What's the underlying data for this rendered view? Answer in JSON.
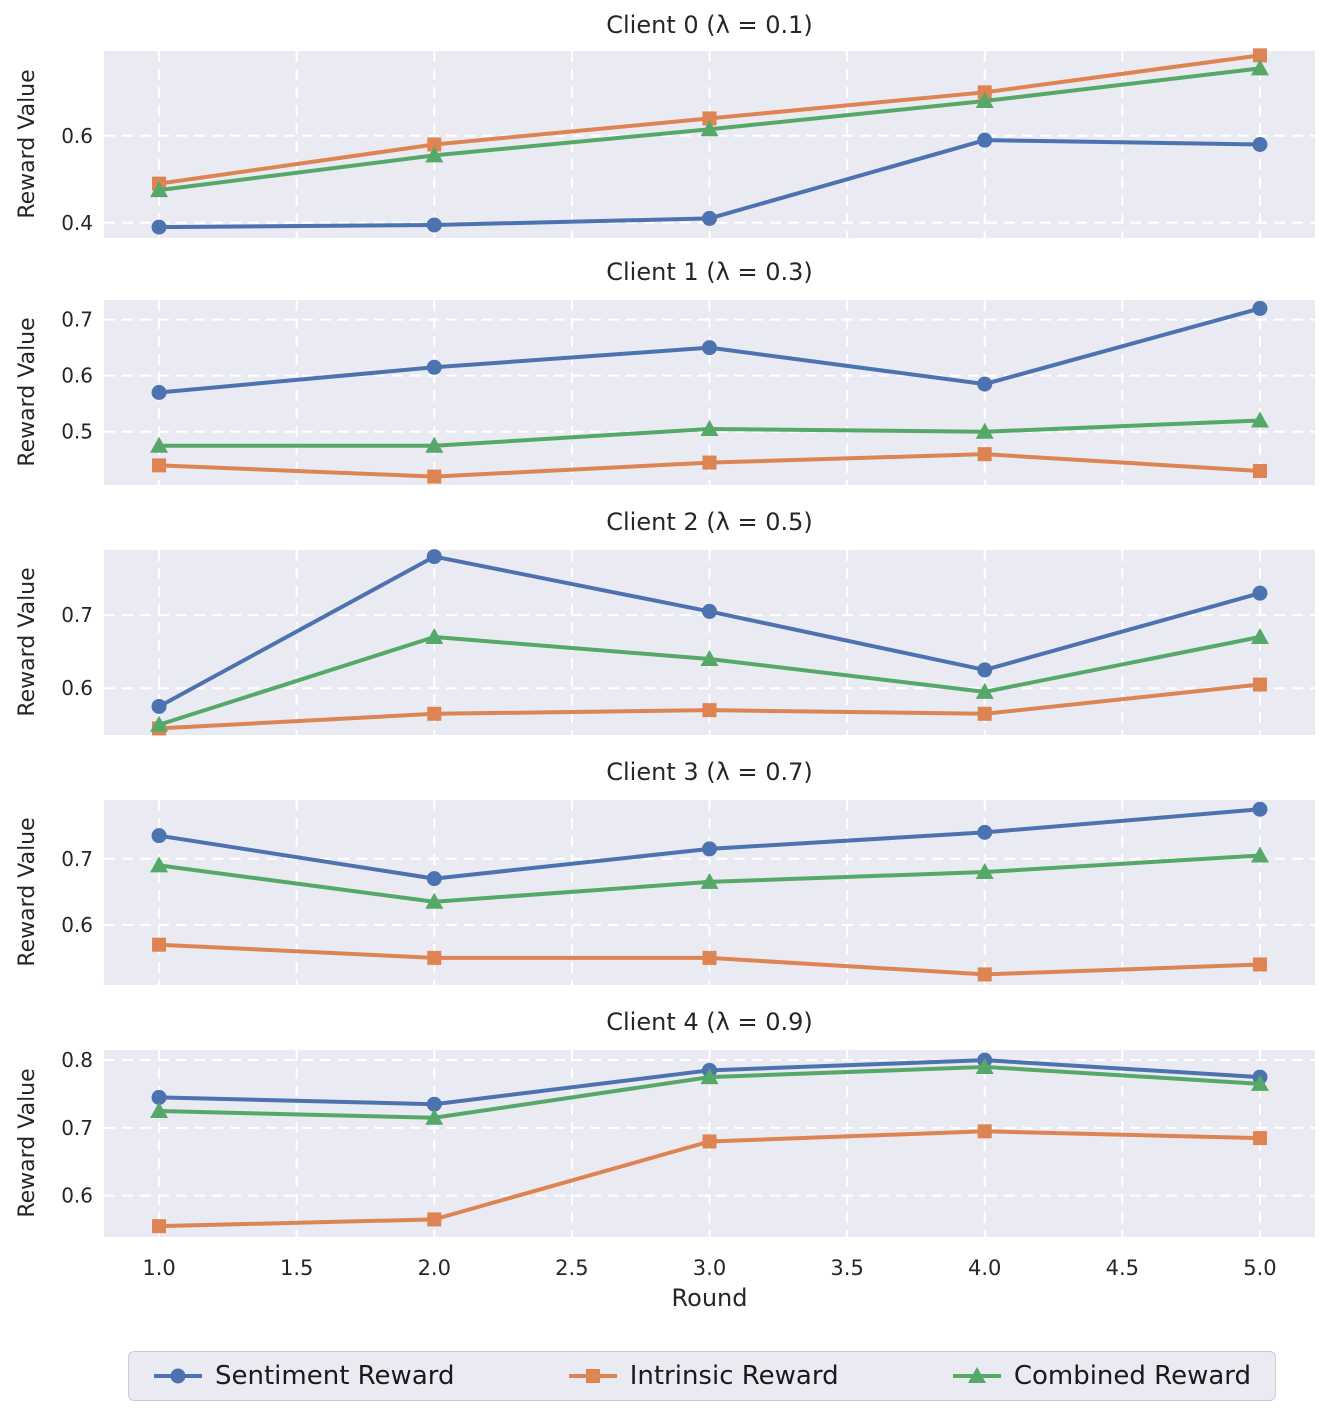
{
  "figure": {
    "background": "#ffffff",
    "plot_background": "#eaeaf2",
    "grid_color": "#ffffff",
    "text_color": "#262626"
  },
  "axes": {
    "xlabel": "Round",
    "ylabel": "Reward Value",
    "xlim": [
      0.8,
      5.2
    ],
    "x_grid": [
      1.0,
      1.5,
      2.0,
      2.5,
      3.0,
      3.5,
      4.0,
      4.5,
      5.0
    ],
    "x_tick_labels": [
      "1.0",
      "1.5",
      "2.0",
      "2.5",
      "3.0",
      "3.5",
      "4.0",
      "4.5",
      "5.0"
    ]
  },
  "legend": {
    "entries": [
      {
        "label": "Sentiment Reward",
        "color": "#4C72B0",
        "marker": "circle"
      },
      {
        "label": "Intrinsic Reward",
        "color": "#DD8452",
        "marker": "square"
      },
      {
        "label": "Combined Reward",
        "color": "#55A868",
        "marker": "triangle"
      }
    ]
  },
  "chart_data": [
    {
      "type": "line",
      "title": "Client 0 (λ = 0.1)",
      "lambda": 0.1,
      "x": [
        1,
        2,
        3,
        4,
        5
      ],
      "yticks": [
        0.4,
        0.6
      ],
      "ylim": [
        0.365,
        0.795
      ],
      "series": [
        {
          "name": "Sentiment Reward",
          "values": [
            0.39,
            0.395,
            0.41,
            0.59,
            0.58
          ]
        },
        {
          "name": "Intrinsic Reward",
          "values": [
            0.49,
            0.58,
            0.64,
            0.7,
            0.785
          ]
        },
        {
          "name": "Combined Reward",
          "values": [
            0.475,
            0.555,
            0.615,
            0.68,
            0.755
          ]
        }
      ]
    },
    {
      "type": "line",
      "title": "Client 1 (λ = 0.3)",
      "lambda": 0.3,
      "x": [
        1,
        2,
        3,
        4,
        5
      ],
      "yticks": [
        0.5,
        0.6,
        0.7
      ],
      "ylim": [
        0.405,
        0.735
      ],
      "series": [
        {
          "name": "Sentiment Reward",
          "values": [
            0.57,
            0.615,
            0.65,
            0.585,
            0.72
          ]
        },
        {
          "name": "Intrinsic Reward",
          "values": [
            0.44,
            0.42,
            0.445,
            0.46,
            0.43
          ]
        },
        {
          "name": "Combined Reward",
          "values": [
            0.475,
            0.475,
            0.505,
            0.5,
            0.52
          ]
        }
      ]
    },
    {
      "type": "line",
      "title": "Client 2 (λ = 0.5)",
      "lambda": 0.5,
      "x": [
        1,
        2,
        3,
        4,
        5
      ],
      "yticks": [
        0.6,
        0.7
      ],
      "ylim": [
        0.536,
        0.789
      ],
      "series": [
        {
          "name": "Sentiment Reward",
          "values": [
            0.575,
            0.78,
            0.705,
            0.625,
            0.73
          ]
        },
        {
          "name": "Intrinsic Reward",
          "values": [
            0.545,
            0.565,
            0.57,
            0.565,
            0.605
          ]
        },
        {
          "name": "Combined Reward",
          "values": [
            0.55,
            0.67,
            0.64,
            0.595,
            0.67
          ]
        }
      ]
    },
    {
      "type": "line",
      "title": "Client 3 (λ = 0.7)",
      "lambda": 0.7,
      "x": [
        1,
        2,
        3,
        4,
        5
      ],
      "yticks": [
        0.6,
        0.7
      ],
      "ylim": [
        0.509,
        0.789
      ],
      "series": [
        {
          "name": "Sentiment Reward",
          "values": [
            0.735,
            0.67,
            0.715,
            0.74,
            0.775
          ]
        },
        {
          "name": "Intrinsic Reward",
          "values": [
            0.57,
            0.55,
            0.55,
            0.525,
            0.54
          ]
        },
        {
          "name": "Combined Reward",
          "values": [
            0.69,
            0.635,
            0.665,
            0.68,
            0.705
          ]
        }
      ]
    },
    {
      "type": "line",
      "title": "Client 4 (λ = 0.9)",
      "lambda": 0.9,
      "x": [
        1,
        2,
        3,
        4,
        5
      ],
      "yticks": [
        0.6,
        0.7,
        0.8
      ],
      "ylim": [
        0.539,
        0.815
      ],
      "series": [
        {
          "name": "Sentiment Reward",
          "values": [
            0.745,
            0.735,
            0.785,
            0.8,
            0.775
          ]
        },
        {
          "name": "Intrinsic Reward",
          "values": [
            0.555,
            0.565,
            0.68,
            0.695,
            0.685
          ]
        },
        {
          "name": "Combined Reward",
          "values": [
            0.725,
            0.715,
            0.775,
            0.79,
            0.765
          ]
        }
      ]
    }
  ]
}
